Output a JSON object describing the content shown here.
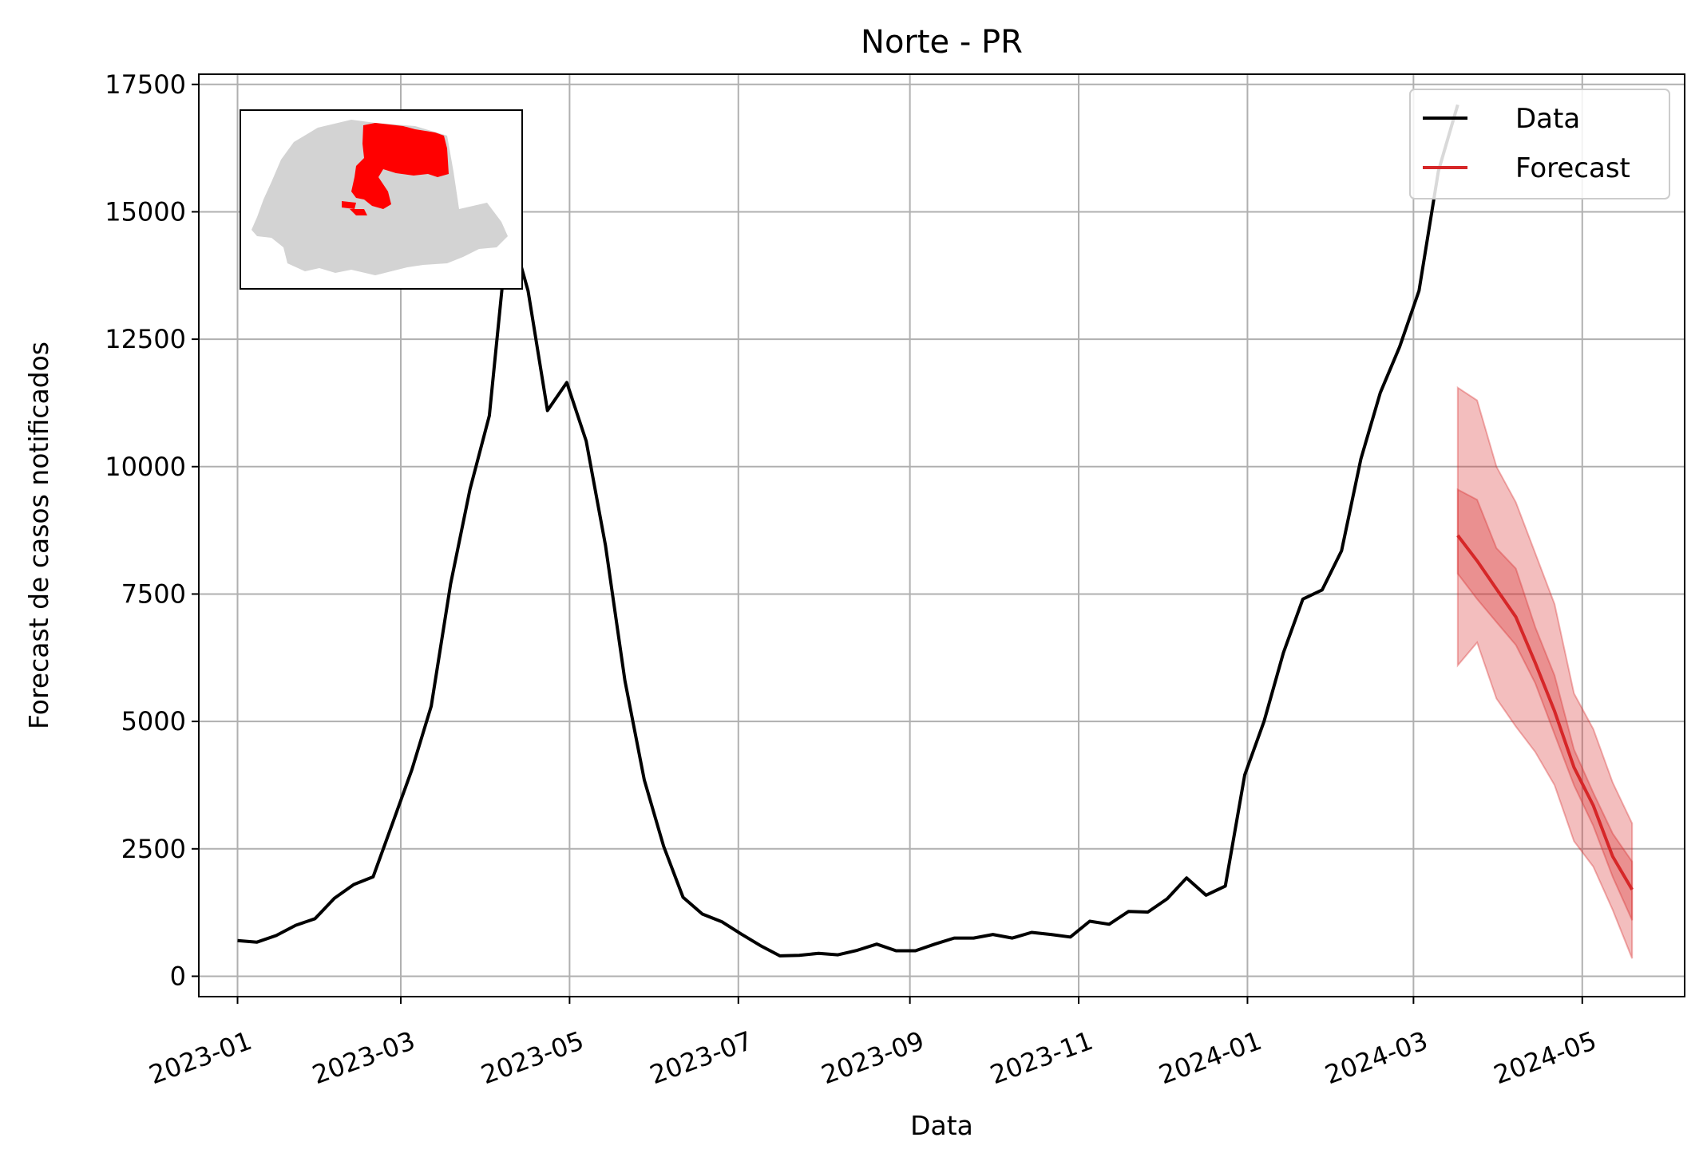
{
  "chart_data": {
    "type": "line",
    "title": "Norte - PR",
    "xlabel": "Data",
    "ylabel": "Forecast de casos notificados",
    "ylim": [
      -400,
      17700
    ],
    "yticks": [
      0,
      2500,
      5000,
      7500,
      10000,
      12500,
      15000,
      17500
    ],
    "xlim": [
      "2022-12-18",
      "2024-06-07"
    ],
    "xticks": [
      "2023-01",
      "2023-03",
      "2023-05",
      "2023-07",
      "2023-09",
      "2023-11",
      "2024-01",
      "2024-03",
      "2024-05"
    ],
    "grid": true,
    "legend": {
      "position": "top-right",
      "entries": [
        "Data",
        "Forecast"
      ]
    },
    "colors": {
      "data": "#000000",
      "forecast": "#d62728",
      "map_region": "#ff0000",
      "map_base": "#d3d3d3"
    },
    "series": [
      {
        "name": "Data",
        "x": [
          "2023-01-01",
          "2023-01-08",
          "2023-01-15",
          "2023-01-22",
          "2023-01-29",
          "2023-02-05",
          "2023-02-12",
          "2023-02-19",
          "2023-02-26",
          "2023-03-05",
          "2023-03-12",
          "2023-03-19",
          "2023-03-26",
          "2023-04-02",
          "2023-04-09",
          "2023-04-16",
          "2023-04-23",
          "2023-04-30",
          "2023-05-07",
          "2023-05-14",
          "2023-05-21",
          "2023-05-28",
          "2023-06-04",
          "2023-06-11",
          "2023-06-18",
          "2023-06-25",
          "2023-07-02",
          "2023-07-09",
          "2023-07-16",
          "2023-07-23",
          "2023-07-30",
          "2023-08-06",
          "2023-08-13",
          "2023-08-20",
          "2023-08-27",
          "2023-09-03",
          "2023-09-10",
          "2023-09-17",
          "2023-09-24",
          "2023-10-01",
          "2023-10-08",
          "2023-10-15",
          "2023-10-22",
          "2023-10-29",
          "2023-11-05",
          "2023-11-12",
          "2023-11-19",
          "2023-11-26",
          "2023-12-03",
          "2023-12-10",
          "2023-12-17",
          "2023-12-24",
          "2023-12-31",
          "2024-01-07",
          "2024-01-14",
          "2024-01-21",
          "2024-01-28",
          "2024-02-04",
          "2024-02-11",
          "2024-02-18",
          "2024-02-25",
          "2024-03-03",
          "2024-03-10",
          "2024-03-17"
        ],
        "values": [
          700,
          670,
          800,
          1000,
          1130,
          1530,
          1800,
          1950,
          3000,
          4050,
          5300,
          7700,
          9550,
          11000,
          14800,
          13450,
          11100,
          11650,
          10500,
          8450,
          5800,
          3850,
          2550,
          1550,
          1220,
          1070,
          830,
          600,
          400,
          410,
          450,
          420,
          510,
          630,
          500,
          500,
          630,
          750,
          750,
          820,
          750,
          860,
          820,
          770,
          1080,
          1020,
          1270,
          1260,
          1520,
          1930,
          1590,
          1770,
          3950,
          5000,
          6350,
          7400,
          7580,
          8350,
          10150,
          11450,
          12350,
          13450,
          15800,
          17100
        ]
      },
      {
        "name": "Forecast",
        "x": [
          "2024-03-17",
          "2024-03-24",
          "2024-03-31",
          "2024-04-07",
          "2024-04-14",
          "2024-04-21",
          "2024-04-28",
          "2024-05-05",
          "2024-05-12",
          "2024-05-19"
        ],
        "values": [
          8650,
          8150,
          7600,
          7050,
          6150,
          5200,
          4100,
          3350,
          2350,
          1700
        ],
        "inner_lower": [
          7900,
          7400,
          6950,
          6500,
          5750,
          4750,
          3750,
          2950,
          1950,
          1100
        ],
        "inner_upper": [
          9550,
          9350,
          8400,
          8000,
          6850,
          5900,
          4450,
          3600,
          2800,
          2250
        ],
        "outer_lower": [
          6100,
          6550,
          5450,
          4900,
          4400,
          3750,
          2650,
          2150,
          1300,
          350
        ],
        "outer_upper": [
          11550,
          11300,
          10000,
          9300,
          8300,
          7300,
          5550,
          4850,
          3800,
          3000
        ]
      }
    ]
  }
}
